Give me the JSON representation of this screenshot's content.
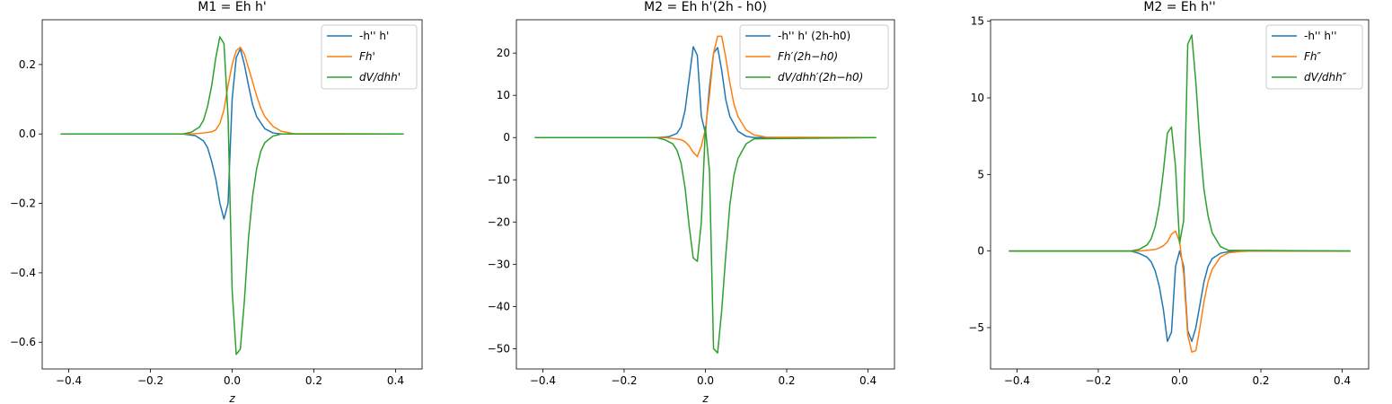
{
  "chart_data": [
    {
      "type": "line",
      "title": "M1 = Eh h'",
      "xlabel": "z",
      "ylabel": "",
      "xlim": [
        -0.465,
        0.465
      ],
      "ylim": [
        -0.677,
        0.329
      ],
      "xticks": [
        -0.4,
        -0.2,
        0.0,
        0.2,
        0.4
      ],
      "xtick_labels": [
        "−0.4",
        "−0.2",
        "0.0",
        "0.2",
        "0.4"
      ],
      "yticks": [
        -0.6,
        -0.4,
        -0.2,
        0.0,
        0.2
      ],
      "ytick_labels": [
        "−0.6",
        "−0.4",
        "−0.2",
        "0.0",
        "0.2"
      ],
      "grid": false,
      "legend_position": "top-right",
      "series": [
        {
          "name": "-h'' h'",
          "color": "#1f77b4",
          "x": [
            -0.42,
            -0.12,
            -0.09,
            -0.07,
            -0.06,
            -0.05,
            -0.04,
            -0.03,
            -0.02,
            -0.01,
            0.0,
            0.01,
            0.02,
            0.03,
            0.04,
            0.05,
            0.06,
            0.08,
            0.1,
            0.12,
            0.42
          ],
          "y": [
            0.0,
            0.0,
            -0.005,
            -0.02,
            -0.04,
            -0.08,
            -0.13,
            -0.2,
            -0.245,
            -0.2,
            0.1,
            0.22,
            0.245,
            0.2,
            0.14,
            0.085,
            0.05,
            0.015,
            0.003,
            0.0,
            0.0
          ]
        },
        {
          "name": "Fh'",
          "color": "#ff7f0e",
          "x": [
            -0.42,
            -0.1,
            -0.07,
            -0.05,
            -0.04,
            -0.03,
            -0.02,
            -0.01,
            0.0,
            0.01,
            0.02,
            0.03,
            0.04,
            0.05,
            0.06,
            0.07,
            0.08,
            0.1,
            0.12,
            0.15,
            0.42
          ],
          "y": [
            0.0,
            0.0,
            0.003,
            0.006,
            0.012,
            0.03,
            0.07,
            0.14,
            0.2,
            0.24,
            0.25,
            0.23,
            0.19,
            0.15,
            0.11,
            0.075,
            0.05,
            0.022,
            0.008,
            0.001,
            0.0
          ]
        },
        {
          "name": "dV/dhh'",
          "color": "#2ca02c",
          "x": [
            -0.42,
            -0.12,
            -0.1,
            -0.08,
            -0.07,
            -0.06,
            -0.05,
            -0.04,
            -0.03,
            -0.02,
            -0.01,
            0.0,
            0.01,
            0.02,
            0.03,
            0.04,
            0.05,
            0.06,
            0.07,
            0.08,
            0.1,
            0.12,
            0.42
          ],
          "y": [
            0.0,
            0.0,
            0.005,
            0.02,
            0.04,
            0.08,
            0.14,
            0.22,
            0.28,
            0.26,
            0.05,
            -0.45,
            -0.635,
            -0.62,
            -0.48,
            -0.3,
            -0.18,
            -0.1,
            -0.05,
            -0.025,
            -0.006,
            0.0,
            0.0
          ]
        }
      ]
    },
    {
      "type": "line",
      "title": "M2 = Eh h'(2h - h0)",
      "xlabel": "z",
      "ylabel": "",
      "xlim": [
        -0.465,
        0.465
      ],
      "ylim": [
        -54.8,
        27.9
      ],
      "xticks": [
        -0.4,
        -0.2,
        0.0,
        0.2,
        0.4
      ],
      "xtick_labels": [
        "−0.4",
        "−0.2",
        "0.0",
        "0.2",
        "0.4"
      ],
      "yticks": [
        -50,
        -40,
        -30,
        -20,
        -10,
        0,
        10,
        20
      ],
      "ytick_labels": [
        "−50",
        "−40",
        "−30",
        "−20",
        "−10",
        "0",
        "10",
        "20"
      ],
      "grid": false,
      "legend_position": "top-right",
      "series": [
        {
          "name": "-h'' h' (2h-h0)",
          "color": "#1f77b4",
          "x": [
            -0.42,
            -0.12,
            -0.09,
            -0.07,
            -0.06,
            -0.05,
            -0.04,
            -0.03,
            -0.02,
            -0.01,
            0.0,
            0.01,
            0.02,
            0.03,
            0.04,
            0.05,
            0.06,
            0.08,
            0.1,
            0.12,
            0.42
          ],
          "y": [
            0.0,
            0.0,
            0.2,
            1.0,
            2.5,
            6.5,
            14.0,
            21.5,
            19.5,
            5.0,
            1.0,
            12.0,
            20.0,
            21.3,
            16.0,
            9.0,
            5.0,
            1.5,
            0.3,
            0.0,
            0.0
          ]
        },
        {
          "name": "Fh′(2h−h0)",
          "color": "#ff7f0e",
          "x": [
            -0.42,
            -0.1,
            -0.08,
            -0.06,
            -0.05,
            -0.04,
            -0.03,
            -0.02,
            -0.01,
            0.0,
            0.01,
            0.02,
            0.03,
            0.04,
            0.05,
            0.06,
            0.07,
            0.08,
            0.1,
            0.12,
            0.15,
            0.42
          ],
          "y": [
            0.0,
            0.0,
            -0.2,
            -0.5,
            -1.0,
            -2.0,
            -3.5,
            -4.5,
            -2.0,
            2.0,
            10.0,
            20.0,
            24.0,
            24.0,
            19.0,
            13.0,
            8.0,
            5.0,
            1.8,
            0.6,
            0.1,
            0.0
          ]
        },
        {
          "name": "dV/dhh′(2h−h0)",
          "color": "#2ca02c",
          "x": [
            -0.42,
            -0.12,
            -0.1,
            -0.08,
            -0.07,
            -0.06,
            -0.05,
            -0.04,
            -0.03,
            -0.02,
            -0.01,
            0.0,
            0.01,
            0.02,
            0.03,
            0.04,
            0.05,
            0.06,
            0.07,
            0.08,
            0.1,
            0.12,
            0.42
          ],
          "y": [
            0.0,
            0.0,
            -0.5,
            -1.5,
            -3.0,
            -6.0,
            -12.0,
            -21.0,
            -28.5,
            -29.3,
            -20.0,
            2.5,
            -8.0,
            -50.0,
            -51.0,
            -41.0,
            -28.0,
            -16.0,
            -9.0,
            -5.0,
            -1.5,
            -0.3,
            0.0
          ]
        }
      ]
    },
    {
      "type": "line",
      "title": "M2 = Eh h''",
      "xlabel": "",
      "ylabel": "",
      "xlim": [
        -0.465,
        0.465
      ],
      "ylim": [
        -7.7,
        15.1
      ],
      "xticks": [
        -0.4,
        -0.2,
        0.0,
        0.2,
        0.4
      ],
      "xtick_labels": [
        "−0.4",
        "−0.2",
        "0.0",
        "0.2",
        "0.4"
      ],
      "yticks": [
        -5,
        0,
        5,
        10,
        15
      ],
      "ytick_labels": [
        "−5",
        "0",
        "5",
        "10",
        "15"
      ],
      "grid": false,
      "legend_position": "top-right",
      "series": [
        {
          "name": "-h'' h''",
          "color": "#1f77b4",
          "x": [
            -0.42,
            -0.12,
            -0.1,
            -0.08,
            -0.07,
            -0.06,
            -0.05,
            -0.04,
            -0.03,
            -0.02,
            -0.01,
            0.0,
            0.01,
            0.02,
            0.03,
            0.04,
            0.05,
            0.06,
            0.07,
            0.08,
            0.1,
            0.12,
            0.15,
            0.42
          ],
          "y": [
            0.0,
            0.0,
            -0.15,
            -0.4,
            -0.7,
            -1.3,
            -2.3,
            -3.8,
            -5.9,
            -5.3,
            -1.0,
            0.0,
            -1.0,
            -5.2,
            -5.9,
            -5.0,
            -3.5,
            -2.0,
            -1.0,
            -0.5,
            -0.15,
            -0.04,
            0.0,
            0.0
          ]
        },
        {
          "name": "Fh″",
          "color": "#ff7f0e",
          "x": [
            -0.42,
            -0.1,
            -0.08,
            -0.06,
            -0.05,
            -0.04,
            -0.03,
            -0.02,
            -0.01,
            0.0,
            0.01,
            0.02,
            0.03,
            0.04,
            0.05,
            0.06,
            0.07,
            0.08,
            0.1,
            0.12,
            0.15,
            0.18,
            0.42
          ],
          "y": [
            0.0,
            0.0,
            0.05,
            0.1,
            0.2,
            0.35,
            0.6,
            1.1,
            1.3,
            0.6,
            -1.5,
            -5.5,
            -6.6,
            -6.5,
            -5.0,
            -3.3,
            -2.0,
            -1.2,
            -0.4,
            -0.12,
            -0.03,
            0.0,
            0.0
          ]
        },
        {
          "name": "dV/dhh″",
          "color": "#2ca02c",
          "x": [
            -0.42,
            -0.12,
            -0.1,
            -0.08,
            -0.07,
            -0.06,
            -0.05,
            -0.04,
            -0.03,
            -0.02,
            -0.01,
            0.0,
            0.01,
            0.02,
            0.03,
            0.04,
            0.05,
            0.06,
            0.07,
            0.08,
            0.1,
            0.12,
            0.42
          ],
          "y": [
            0.0,
            0.0,
            0.1,
            0.4,
            0.8,
            1.6,
            3.0,
            5.2,
            7.7,
            8.1,
            5.5,
            0.5,
            2.0,
            13.5,
            14.1,
            11.0,
            7.0,
            4.0,
            2.3,
            1.2,
            0.3,
            0.05,
            0.0
          ]
        }
      ]
    }
  ]
}
